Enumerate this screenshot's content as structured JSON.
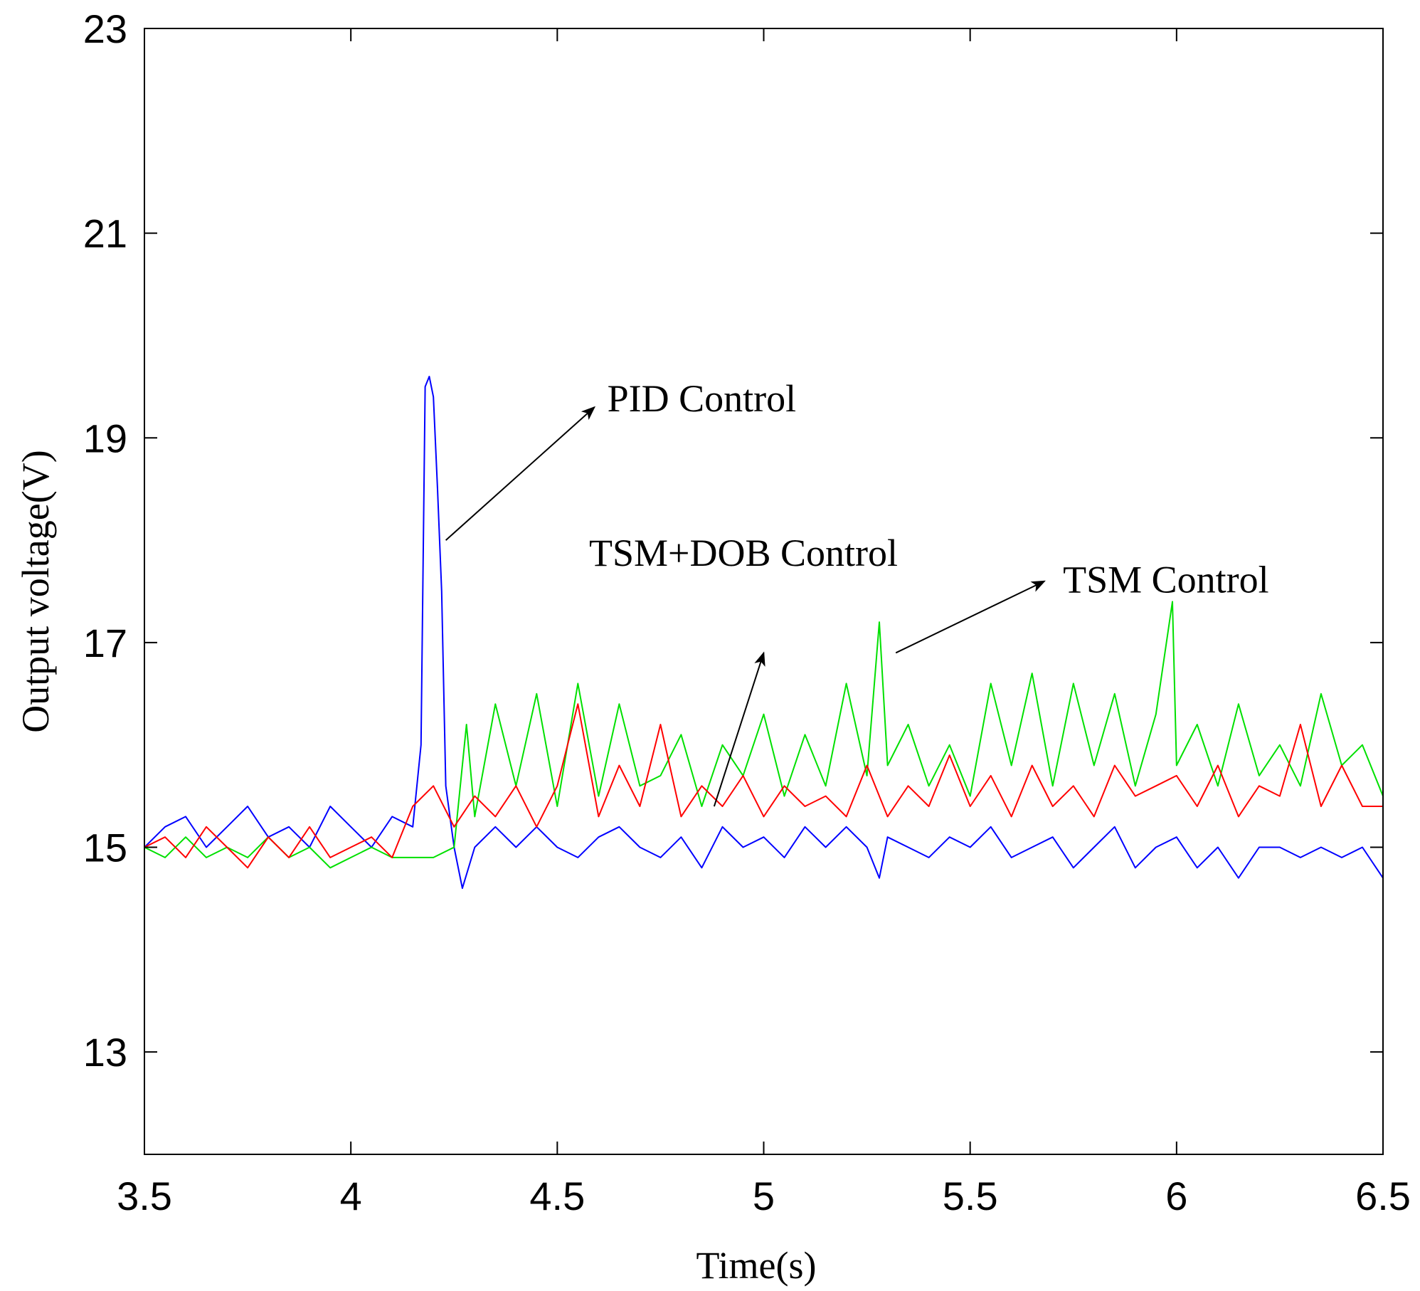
{
  "chart_data": {
    "type": "line",
    "title": "",
    "xlabel": "Time(s)",
    "ylabel": "Output voltage(V)",
    "xlim": [
      3.5,
      6.5
    ],
    "ylim": [
      12,
      23
    ],
    "xticks": [
      3.5,
      4,
      4.5,
      5,
      5.5,
      6,
      6.5
    ],
    "xtick_labels": [
      "3.5",
      "4",
      "4.5",
      "5",
      "5.5",
      "6",
      "6.5"
    ],
    "yticks": [
      13,
      15,
      17,
      19,
      21,
      23
    ],
    "ytick_labels": [
      "13",
      "15",
      "17",
      "19",
      "21",
      "23"
    ],
    "grid": false,
    "series": [
      {
        "name": "PID Control",
        "color": "#0000ff",
        "x": [
          3.5,
          3.55,
          3.6,
          3.65,
          3.7,
          3.75,
          3.8,
          3.85,
          3.9,
          3.95,
          4.0,
          4.05,
          4.1,
          4.15,
          4.17,
          4.18,
          4.19,
          4.2,
          4.21,
          4.22,
          4.23,
          4.25,
          4.27,
          4.3,
          4.35,
          4.4,
          4.45,
          4.5,
          4.55,
          4.6,
          4.65,
          4.7,
          4.75,
          4.8,
          4.85,
          4.9,
          4.95,
          5.0,
          5.05,
          5.1,
          5.15,
          5.2,
          5.25,
          5.28,
          5.3,
          5.35,
          5.4,
          5.45,
          5.5,
          5.55,
          5.6,
          5.65,
          5.7,
          5.75,
          5.8,
          5.85,
          5.9,
          5.95,
          6.0,
          6.05,
          6.1,
          6.15,
          6.2,
          6.25,
          6.3,
          6.35,
          6.4,
          6.45,
          6.5
        ],
        "y": [
          15.0,
          15.2,
          15.3,
          15.0,
          15.2,
          15.4,
          15.1,
          15.2,
          15.0,
          15.4,
          15.2,
          15.0,
          15.3,
          15.2,
          16.0,
          19.5,
          19.6,
          19.4,
          18.5,
          17.5,
          15.6,
          15.0,
          14.6,
          15.0,
          15.2,
          15.0,
          15.2,
          15.0,
          14.9,
          15.1,
          15.2,
          15.0,
          14.9,
          15.1,
          14.8,
          15.2,
          15.0,
          15.1,
          14.9,
          15.2,
          15.0,
          15.2,
          15.0,
          14.7,
          15.1,
          15.0,
          14.9,
          15.1,
          15.0,
          15.2,
          14.9,
          15.0,
          15.1,
          14.8,
          15.0,
          15.2,
          14.8,
          15.0,
          15.1,
          14.8,
          15.0,
          14.7,
          15.0,
          15.0,
          14.9,
          15.0,
          14.9,
          15.0,
          14.7
        ]
      },
      {
        "name": "TSM Control",
        "color": "#00e000",
        "x": [
          3.5,
          3.55,
          3.6,
          3.65,
          3.7,
          3.75,
          3.8,
          3.85,
          3.9,
          3.95,
          4.0,
          4.05,
          4.1,
          4.15,
          4.2,
          4.25,
          4.28,
          4.3,
          4.35,
          4.4,
          4.45,
          4.5,
          4.55,
          4.6,
          4.65,
          4.7,
          4.75,
          4.8,
          4.85,
          4.9,
          4.95,
          5.0,
          5.05,
          5.1,
          5.15,
          5.2,
          5.25,
          5.28,
          5.3,
          5.35,
          5.4,
          5.45,
          5.5,
          5.55,
          5.6,
          5.65,
          5.7,
          5.75,
          5.8,
          5.85,
          5.9,
          5.95,
          5.99,
          6.0,
          6.05,
          6.1,
          6.15,
          6.2,
          6.25,
          6.3,
          6.35,
          6.4,
          6.45,
          6.5
        ],
        "y": [
          15.0,
          14.9,
          15.1,
          14.9,
          15.0,
          14.9,
          15.1,
          14.9,
          15.0,
          14.8,
          14.9,
          15.0,
          14.9,
          14.9,
          14.9,
          15.0,
          16.2,
          15.3,
          16.4,
          15.6,
          16.5,
          15.4,
          16.6,
          15.5,
          16.4,
          15.6,
          15.7,
          16.1,
          15.4,
          16.0,
          15.7,
          16.3,
          15.5,
          16.1,
          15.6,
          16.6,
          15.7,
          17.2,
          15.8,
          16.2,
          15.6,
          16.0,
          15.5,
          16.6,
          15.8,
          16.7,
          15.6,
          16.6,
          15.8,
          16.5,
          15.6,
          16.3,
          17.4,
          15.8,
          16.2,
          15.6,
          16.4,
          15.7,
          16.0,
          15.6,
          16.5,
          15.8,
          16.0,
          15.5
        ]
      },
      {
        "name": "TSM+DOB Control",
        "color": "#ff0000",
        "x": [
          3.5,
          3.55,
          3.6,
          3.65,
          3.7,
          3.75,
          3.8,
          3.85,
          3.9,
          3.95,
          4.0,
          4.05,
          4.1,
          4.15,
          4.2,
          4.25,
          4.3,
          4.35,
          4.4,
          4.45,
          4.5,
          4.55,
          4.6,
          4.65,
          4.7,
          4.75,
          4.8,
          4.85,
          4.9,
          4.95,
          5.0,
          5.05,
          5.1,
          5.15,
          5.2,
          5.25,
          5.3,
          5.35,
          5.4,
          5.45,
          5.5,
          5.55,
          5.6,
          5.65,
          5.7,
          5.75,
          5.8,
          5.85,
          5.9,
          5.95,
          6.0,
          6.05,
          6.1,
          6.15,
          6.2,
          6.25,
          6.3,
          6.35,
          6.4,
          6.45,
          6.5
        ],
        "y": [
          15.0,
          15.1,
          14.9,
          15.2,
          15.0,
          14.8,
          15.1,
          14.9,
          15.2,
          14.9,
          15.0,
          15.1,
          14.9,
          15.4,
          15.6,
          15.2,
          15.5,
          15.3,
          15.6,
          15.2,
          15.6,
          16.4,
          15.3,
          15.8,
          15.4,
          16.2,
          15.3,
          15.6,
          15.4,
          15.7,
          15.3,
          15.6,
          15.4,
          15.5,
          15.3,
          15.8,
          15.3,
          15.6,
          15.4,
          15.9,
          15.4,
          15.7,
          15.3,
          15.8,
          15.4,
          15.6,
          15.3,
          15.8,
          15.5,
          15.6,
          15.7,
          15.4,
          15.8,
          15.3,
          15.6,
          15.5,
          16.2,
          15.4,
          15.8,
          15.4,
          15.4
        ]
      }
    ],
    "annotations": [
      {
        "text": "PID  Control",
        "arrow_from": [
          4.23,
          18.0
        ],
        "arrow_to": [
          4.59,
          19.3
        ]
      },
      {
        "text": "TSM+DOB Control",
        "arrow_from": [
          4.88,
          15.4
        ],
        "arrow_to": [
          5.0,
          16.9
        ]
      },
      {
        "text": "TSM Control",
        "arrow_from": [
          5.32,
          16.9
        ],
        "arrow_to": [
          5.68,
          17.6
        ]
      }
    ]
  }
}
